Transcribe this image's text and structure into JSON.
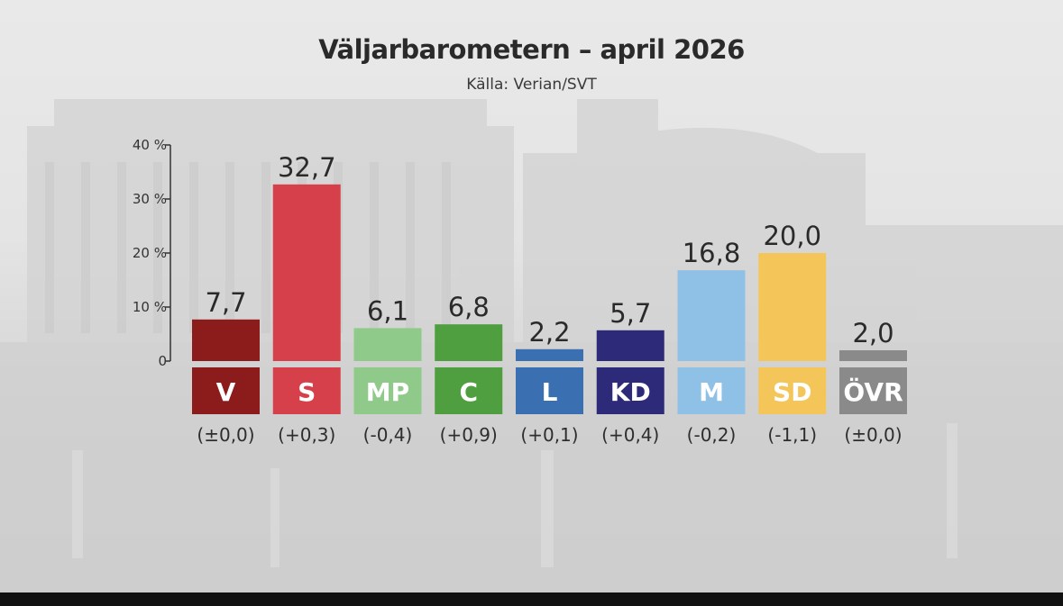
{
  "header": {
    "title": "Väljarbarometern – april 2026",
    "subtitle": "Källa: Verian/SVT"
  },
  "chart_data": {
    "type": "bar",
    "title": "Väljarbarometern – april 2026",
    "subtitle": "Källa: Verian/SVT",
    "xlabel": "",
    "ylabel": "",
    "ylim": [
      0,
      40
    ],
    "y_ticks": [
      0,
      10,
      20,
      30,
      40
    ],
    "y_tick_labels": [
      "0",
      "10 %",
      "20 %",
      "30 %",
      "40 %"
    ],
    "grid": false,
    "categories": [
      "V",
      "S",
      "MP",
      "C",
      "L",
      "KD",
      "M",
      "SD",
      "ÖVR"
    ],
    "values": [
      7.7,
      32.7,
      6.1,
      6.8,
      2.2,
      5.7,
      16.8,
      20.0,
      2.0
    ],
    "value_labels": [
      "7,7",
      "32,7",
      "6,1",
      "6,8",
      "2,2",
      "5,7",
      "16,8",
      "20,0",
      "2,0"
    ],
    "changes": [
      "(±0,0)",
      "(+0,3)",
      "(-0,4)",
      "(+0,9)",
      "(+0,1)",
      "(+0,4)",
      "(-0,2)",
      "(-1,1)",
      "(±0,0)"
    ],
    "colors": [
      "#8c1c1c",
      "#d6404a",
      "#8fca8a",
      "#4f9e3f",
      "#3a6fb2",
      "#2e2a7a",
      "#8fc1e6",
      "#f4c65a",
      "#8a8a8a"
    ]
  }
}
